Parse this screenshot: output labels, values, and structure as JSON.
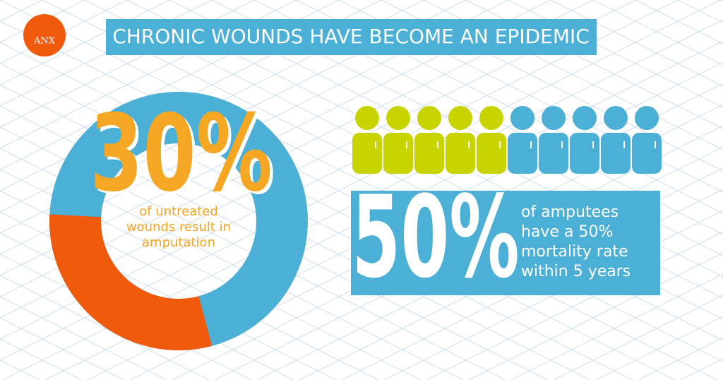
{
  "logo": {
    "name": "ANX"
  },
  "header": {
    "title": "CHRONIC WOUNDS HAVE BECOME AN EPIDEMIC"
  },
  "donut": {
    "value": 30,
    "label": "30%",
    "caption": [
      "of untreated",
      "wounds result in",
      "amputation"
    ],
    "color": "#f05a0c",
    "track_color": "#4bafd6"
  },
  "stat": {
    "value": 50,
    "label": "50%",
    "caption": [
      "of amputees",
      "have a 50%",
      "mortality rate",
      "within 5 years"
    ],
    "highlight_color": "#c8d400",
    "base_color": "#4bafd6"
  }
}
